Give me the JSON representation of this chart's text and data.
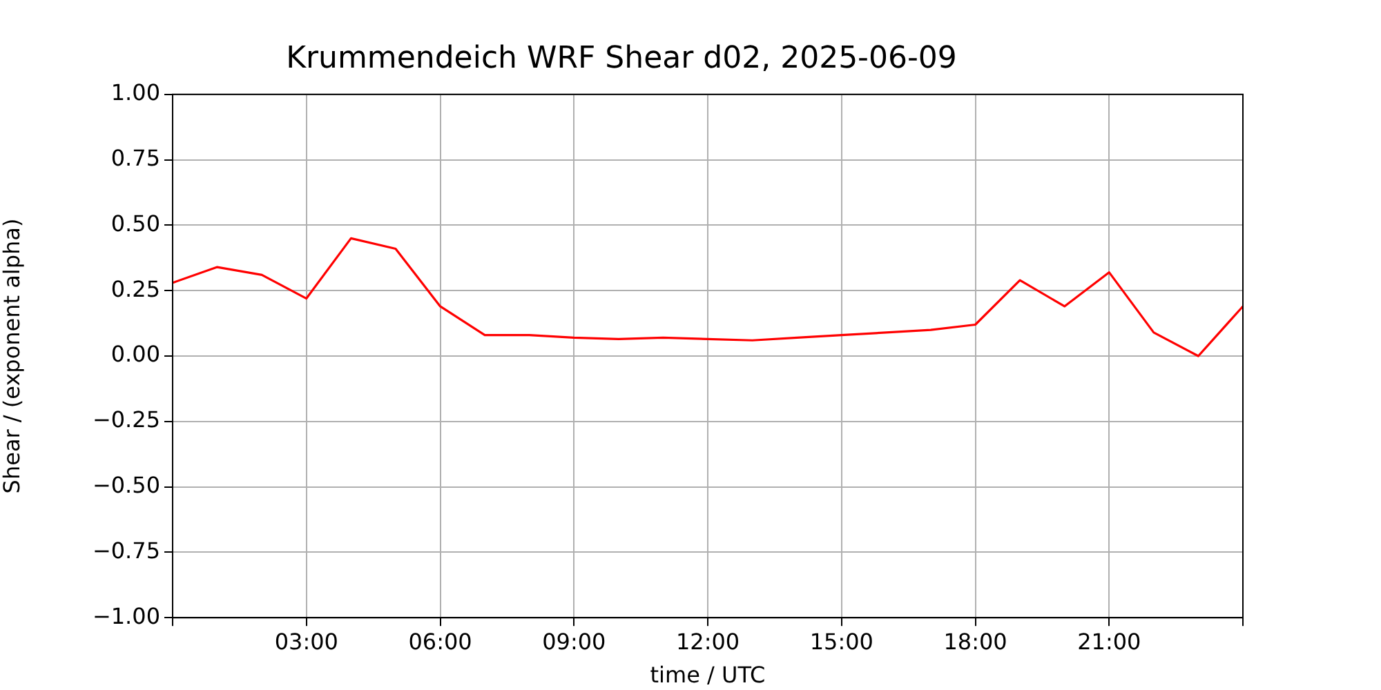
{
  "chart_data": {
    "type": "line",
    "title": "Krummendeich WRF Shear d02, 2025-06-09",
    "xlabel": "time / UTC",
    "ylabel": "Shear / (exponent alpha)",
    "x": [
      0,
      1,
      2,
      3,
      4,
      5,
      6,
      7,
      8,
      9,
      10,
      11,
      12,
      13,
      14,
      15,
      16,
      17,
      18,
      19,
      20,
      21,
      22,
      23,
      24
    ],
    "series": [
      {
        "color": "#ff0000",
        "values": [
          0.28,
          0.34,
          0.31,
          0.22,
          0.45,
          0.41,
          0.19,
          0.08,
          0.08,
          0.07,
          0.065,
          0.07,
          0.065,
          0.06,
          0.07,
          0.08,
          0.09,
          0.1,
          0.12,
          0.29,
          0.19,
          0.32,
          0.09,
          0.0,
          0.19
        ]
      }
    ],
    "xlim": [
      0,
      24
    ],
    "xticks": [
      {
        "value": 0,
        "label": null
      },
      {
        "value": 3,
        "label": "03:00"
      },
      {
        "value": 6,
        "label": "06:00"
      },
      {
        "value": 9,
        "label": "09:00"
      },
      {
        "value": 12,
        "label": "12:00"
      },
      {
        "value": 15,
        "label": "15:00"
      },
      {
        "value": 18,
        "label": "18:00"
      },
      {
        "value": 21,
        "label": "21:00"
      },
      {
        "value": 24,
        "label": null
      }
    ],
    "ylim": [
      -1,
      1
    ],
    "yticks": [
      {
        "value": -1,
        "label": "−1.00"
      },
      {
        "value": -0.75,
        "label": "−0.75"
      },
      {
        "value": -0.5,
        "label": "−0.50"
      },
      {
        "value": -0.25,
        "label": "−0.25"
      },
      {
        "value": 0,
        "label": "0.00"
      },
      {
        "value": 0.25,
        "label": "0.25"
      },
      {
        "value": 0.5,
        "label": "0.50"
      },
      {
        "value": 0.75,
        "label": "0.75"
      },
      {
        "value": 1,
        "label": "1.00"
      }
    ],
    "grid": true,
    "marker": "none",
    "line_style": "solid",
    "legend": false
  }
}
